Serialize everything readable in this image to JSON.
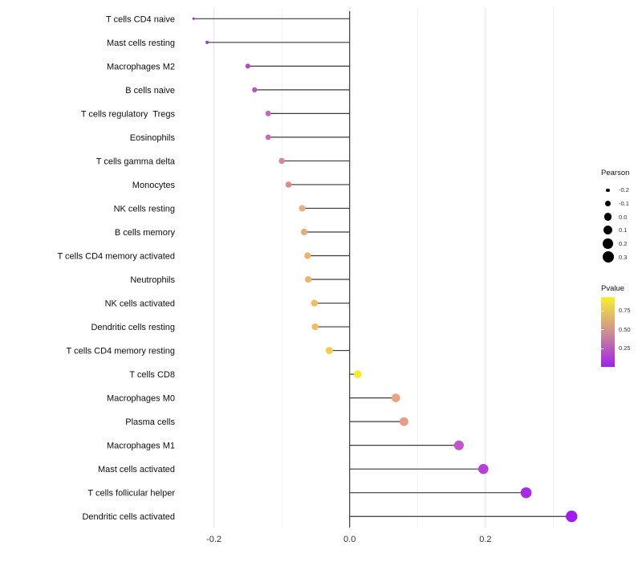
{
  "chart_data": {
    "type": "lollipop",
    "title": "",
    "xlabel": "",
    "ylabel": "",
    "x_tick_labels": [
      "-0.2",
      "0.0",
      "0.2"
    ],
    "x_ticks": [
      -0.2,
      0.0,
      0.2
    ],
    "x_minor_ticks": [
      -0.1,
      0.1,
      0.3
    ],
    "xlim": [
      -0.253,
      0.356
    ],
    "baseline": 0,
    "grid": "vertical-only",
    "rows": [
      {
        "name": "T cells CD4 naive",
        "pearson": -0.23,
        "pvalue": 0.06,
        "color": "#9B2CDF"
      },
      {
        "name": "Mast cells resting",
        "pearson": -0.21,
        "pvalue": 0.09,
        "color": "#A338DB"
      },
      {
        "name": "Macrophages M2",
        "pearson": -0.15,
        "pvalue": 0.19,
        "color": "#B14CCA"
      },
      {
        "name": "B cells naive",
        "pearson": -0.14,
        "pvalue": 0.23,
        "color": "#B855C5"
      },
      {
        "name": "T cells regulatory  Tregs",
        "pearson": -0.12,
        "pvalue": 0.31,
        "color": "#C667BA"
      },
      {
        "name": "Eosinophils",
        "pearson": -0.12,
        "pvalue": 0.33,
        "color": "#C96CB5"
      },
      {
        "name": "T cells gamma delta",
        "pearson": -0.1,
        "pvalue": 0.44,
        "color": "#D68797"
      },
      {
        "name": "Monocytes",
        "pearson": -0.09,
        "pvalue": 0.47,
        "color": "#DA8D8B"
      },
      {
        "name": "NK cells resting",
        "pearson": -0.07,
        "pvalue": 0.56,
        "color": "#EBAE7E"
      },
      {
        "name": "B cells memory",
        "pearson": -0.067,
        "pvalue": 0.58,
        "color": "#EAAB7A"
      },
      {
        "name": "T cells CD4 memory activated",
        "pearson": -0.062,
        "pvalue": 0.62,
        "color": "#EDB272"
      },
      {
        "name": "Neutrophils",
        "pearson": -0.061,
        "pvalue": 0.63,
        "color": "#EDB470"
      },
      {
        "name": "NK cells activated",
        "pearson": -0.052,
        "pvalue": 0.7,
        "color": "#F0BD62"
      },
      {
        "name": "Dendritic cells resting",
        "pearson": -0.051,
        "pvalue": 0.71,
        "color": "#F0BE61"
      },
      {
        "name": "T cells CD4 memory resting",
        "pearson": -0.03,
        "pvalue": 0.82,
        "color": "#F3CC49"
      },
      {
        "name": "T cells CD8",
        "pearson": 0.012,
        "pvalue": 0.92,
        "color": "#F5EC2A"
      },
      {
        "name": "Macrophages M0",
        "pearson": 0.068,
        "pvalue": 0.5,
        "color": "#E9A580"
      },
      {
        "name": "Plasma cells",
        "pearson": 0.08,
        "pvalue": 0.46,
        "color": "#E79B89"
      },
      {
        "name": "Macrophages M1",
        "pearson": 0.161,
        "pvalue": 0.18,
        "color": "#C254CC"
      },
      {
        "name": "Mast cells activated",
        "pearson": 0.197,
        "pvalue": 0.12,
        "color": "#B640D8"
      },
      {
        "name": "T cells follicular helper",
        "pearson": 0.26,
        "pvalue": 0.05,
        "color": "#A82BE6"
      },
      {
        "name": "Dendritic cells activated",
        "pearson": 0.327,
        "pvalue": 0.01,
        "color": "#A21CEF"
      }
    ],
    "legend": {
      "size": {
        "title": "Pearson",
        "labels": [
          "-0.2",
          "-0.1",
          "0.0",
          "0.1",
          "0.2",
          "0.3"
        ],
        "values": [
          -0.2,
          -0.1,
          0.0,
          0.1,
          0.2,
          0.3
        ],
        "dot_color": "#000000"
      },
      "color": {
        "title": "Pvalue",
        "labels": [
          "0.75",
          "0.50",
          "0.25"
        ],
        "values": [
          0.75,
          0.5,
          0.25
        ],
        "range": [
          0.0,
          0.93
        ],
        "gradient_low": "#A020F0",
        "gradient_mid": "#CD8F91",
        "gradient_high": "#F9EE33"
      }
    },
    "colors": {
      "segment": "#3a3a3a",
      "baseline_line": "#2e2e2e",
      "grid_major": "#e4e4e4",
      "grid_minor": "#f0f0f0",
      "axis_text": "#333333",
      "y_label_text": "#0d0d0d"
    }
  }
}
